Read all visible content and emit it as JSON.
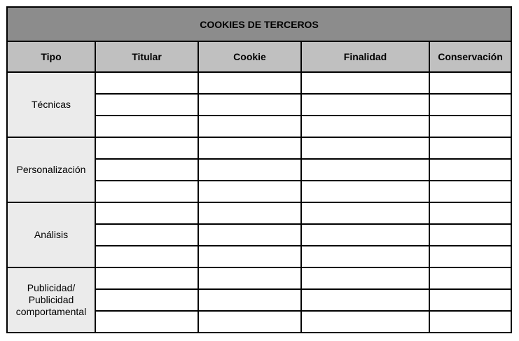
{
  "title": "COOKIES DE TERCEROS",
  "columns": [
    "Tipo",
    "Titular",
    "Cookie",
    "Finalidad",
    "Conservación"
  ],
  "colors": {
    "title_bg": "#8c8c8c",
    "header_bg": "#c0c0c0",
    "type_bg": "#ebebeb"
  },
  "groups": [
    {
      "tipo": "Técnicas",
      "rows": [
        [
          "",
          "",
          "",
          ""
        ],
        [
          "",
          "",
          "",
          ""
        ],
        [
          "",
          "",
          "",
          ""
        ]
      ]
    },
    {
      "tipo": "Personalización",
      "rows": [
        [
          "",
          "",
          "",
          ""
        ],
        [
          "",
          "",
          "",
          ""
        ],
        [
          "",
          "",
          "",
          ""
        ]
      ]
    },
    {
      "tipo": "Análisis",
      "rows": [
        [
          "",
          "",
          "",
          ""
        ],
        [
          "",
          "",
          "",
          ""
        ],
        [
          "",
          "",
          "",
          ""
        ]
      ]
    },
    {
      "tipo": "Publicidad/ Publicidad comportamental",
      "rows": [
        [
          "",
          "",
          "",
          ""
        ],
        [
          "",
          "",
          "",
          ""
        ],
        [
          "",
          "",
          "",
          ""
        ]
      ]
    }
  ]
}
